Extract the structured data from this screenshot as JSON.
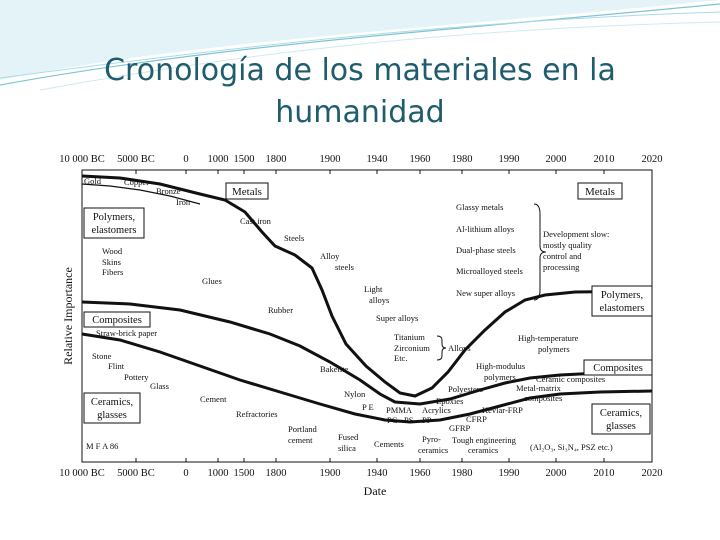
{
  "slide": {
    "title_line1": "Cronología de los materiales en la",
    "title_line2": "humanidad"
  },
  "chart_data": {
    "type": "area",
    "xlabel": "Date",
    "ylabel": "Relative Importance",
    "x_ticks": [
      "10 000 BC",
      "5000 BC",
      "0",
      "1000",
      "1500",
      "1800",
      "1900",
      "1940",
      "1960",
      "1980",
      "1990",
      "2000",
      "2010",
      "2020"
    ],
    "bands": [
      {
        "name": "Metals"
      },
      {
        "name": "Polymers, elastomers"
      },
      {
        "name": "Composites"
      },
      {
        "name": "Ceramics, glasses"
      }
    ],
    "band_labels": {
      "metals_left": "Metals",
      "metals_right": "Metals",
      "polymers_left": [
        "Polymers,",
        "elastomers"
      ],
      "polymers_right": [
        "Polymers,",
        "elastomers"
      ],
      "composites_left": "Composites",
      "composites_right": "Composites",
      "ceramics_left": [
        "Ceramics,",
        "glasses"
      ],
      "ceramics_right": [
        "Ceramics,",
        "glasses"
      ]
    },
    "annotations": {
      "gold": "Gold",
      "copper": "Copper",
      "bronze": "Bronze",
      "iron": "Iron",
      "cast_iron": "Cast iron",
      "steels": "Steels",
      "alloy_steels": [
        "Alloy",
        "steels"
      ],
      "light_alloys": [
        "Light",
        "alloys"
      ],
      "super_alloys": "Super alloys",
      "titanium": "Titanium",
      "zirconium": "Zirconium",
      "etc": "Etc.",
      "alloys": "Alloys",
      "glassy_metals": "Glassy metals",
      "al_lithium": "Al-lithium alloys",
      "dual_phase": "Dual-phase steels",
      "microalloyed": "Microalloyed steels",
      "new_super_alloys": "New super alloys",
      "development": [
        "Development slow:",
        "mostly quality",
        "control and",
        "processing"
      ],
      "wood": "Wood",
      "skins": "Skins",
      "fibers": "Fibers",
      "glues": "Glues",
      "rubber": "Rubber",
      "straw_brick": "Straw-brick paper",
      "stone": "Stone",
      "flint": "Flint",
      "pottery": "Pottery",
      "glass": "Glass",
      "cement": "Cement",
      "refractories": "Refractories",
      "portland_cement": [
        "Portland",
        "cement"
      ],
      "fused_silica": [
        "Fused",
        "silica"
      ],
      "cements": "Cements",
      "bakelite": "Bakelite",
      "nylon": "Nylon",
      "pe": "P E",
      "pmma": "PMMA",
      "acrylics": "Acrylics",
      "pc_ps_pp": [
        "PC",
        "PS",
        "PP"
      ],
      "epoxies": "Epoxies",
      "polyesters": "Polyesters",
      "high_modulus": [
        "High-modulus",
        "polymers"
      ],
      "high_temperature": [
        "High-temperature",
        "polymers"
      ],
      "metal_matrix": [
        "Metal-matrix",
        "composites"
      ],
      "ceramic_composites": "Ceramic composites",
      "kevlar": "Kevlar-FRP",
      "cfrp": "CFRP",
      "gfrp": "GFRP",
      "pyro_ceramics": [
        "Pyro-",
        "ceramics"
      ],
      "tough_eng": [
        "Tough engineering",
        "ceramics"
      ],
      "ceramics_examples": "(Al₂O₃, Si₃N₄, PSZ etc.)",
      "mfa": "M F A 86"
    }
  }
}
